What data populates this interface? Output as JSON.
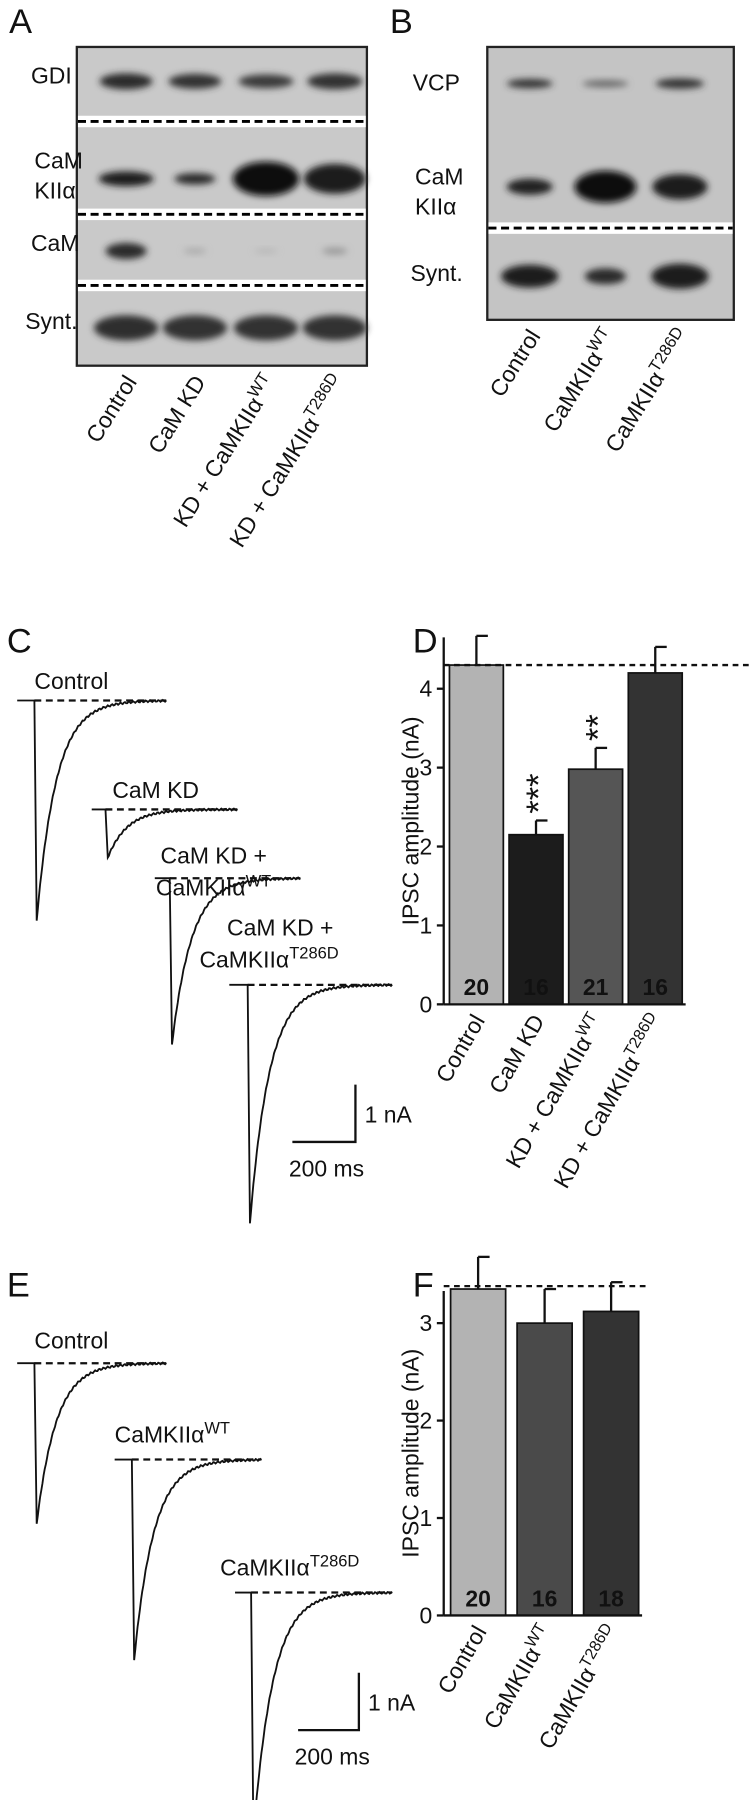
{
  "panel_labels": [
    "A",
    "B",
    "C",
    "D",
    "E",
    "F"
  ],
  "blot_a": {
    "rows": [
      [
        "GDI"
      ],
      [
        "CaM",
        "KIIα"
      ],
      [
        "CaM"
      ],
      [
        "Synt."
      ]
    ],
    "lanes": [
      {
        "text": "Control"
      },
      {
        "text": "CaM KD"
      },
      {
        "text": "KD + CaMKIIα",
        "sup": "WT"
      },
      {
        "text": "KD + CaMKIIα",
        "sup": "T286D"
      }
    ]
  },
  "blot_b": {
    "rows": [
      [
        "VCP"
      ],
      [
        "CaM",
        "KIIα"
      ],
      [
        "Synt."
      ]
    ],
    "lanes": [
      {
        "text": "Control"
      },
      {
        "text": "CaMKIIα",
        "sup": "WT"
      },
      {
        "text": "CaMKIIα",
        "sup": "T286D"
      }
    ]
  },
  "traces_c": {
    "labels": [
      [
        {
          "text": "Control"
        }
      ],
      [
        {
          "text": "CaM KD"
        }
      ],
      [
        {
          "text": "CaM KD +"
        },
        {
          "text": "CaMKIIα",
          "sup": "WT"
        }
      ],
      [
        {
          "text": "CaM KD +"
        },
        {
          "text": "CaMKIIα",
          "sup": "T286D"
        }
      ]
    ],
    "scale_y": "1 nA",
    "scale_x": "200 ms"
  },
  "traces_e": {
    "labels": [
      [
        {
          "text": "Control"
        }
      ],
      [
        {
          "text": "CaMKIIα",
          "sup": "WT"
        }
      ],
      [
        {
          "text": "CaMKIIα",
          "sup": "T286D"
        }
      ]
    ],
    "scale_y": "1 nA",
    "scale_x": "200 ms"
  },
  "chart_data": [
    {
      "type": "bar",
      "y_label": "IPSC amplitude (nA)",
      "categories": [
        "Control",
        "CaM KD",
        "KD + CaMKIIα",
        "KD + CaMKIIα"
      ],
      "category_superscripts": [
        null,
        null,
        "WT",
        "T286D"
      ],
      "values": [
        4.3,
        2.15,
        2.98,
        4.2
      ],
      "errors": [
        0.37,
        0.18,
        0.27,
        0.33
      ],
      "colors": [
        "#b3b3b3",
        "#1c1c1c",
        "#555555",
        "#333333"
      ],
      "n": [
        20,
        16,
        21,
        16
      ],
      "annotations": [
        null,
        "***",
        "**",
        null
      ],
      "reference_line": 4.3,
      "ylim": [
        0,
        4.65
      ],
      "yticks": [
        0,
        1,
        2,
        3,
        4
      ]
    },
    {
      "type": "bar",
      "y_label": "IPSC amplitude (nA)",
      "categories": [
        "Control",
        "CaMKIIα",
        "CaMKIIα"
      ],
      "category_superscripts": [
        null,
        "WT",
        "T286D"
      ],
      "values": [
        3.35,
        3.0,
        3.12
      ],
      "errors": [
        0.33,
        0.35,
        0.3
      ],
      "colors": [
        "#b3b3b3",
        "#4a4a4a",
        "#333333"
      ],
      "n": [
        20,
        16,
        18
      ],
      "annotations": [
        null,
        null,
        null
      ],
      "reference_line": 3.38,
      "ylim": [
        0,
        3.33
      ],
      "yticks": [
        0,
        1,
        2,
        3
      ]
    }
  ]
}
